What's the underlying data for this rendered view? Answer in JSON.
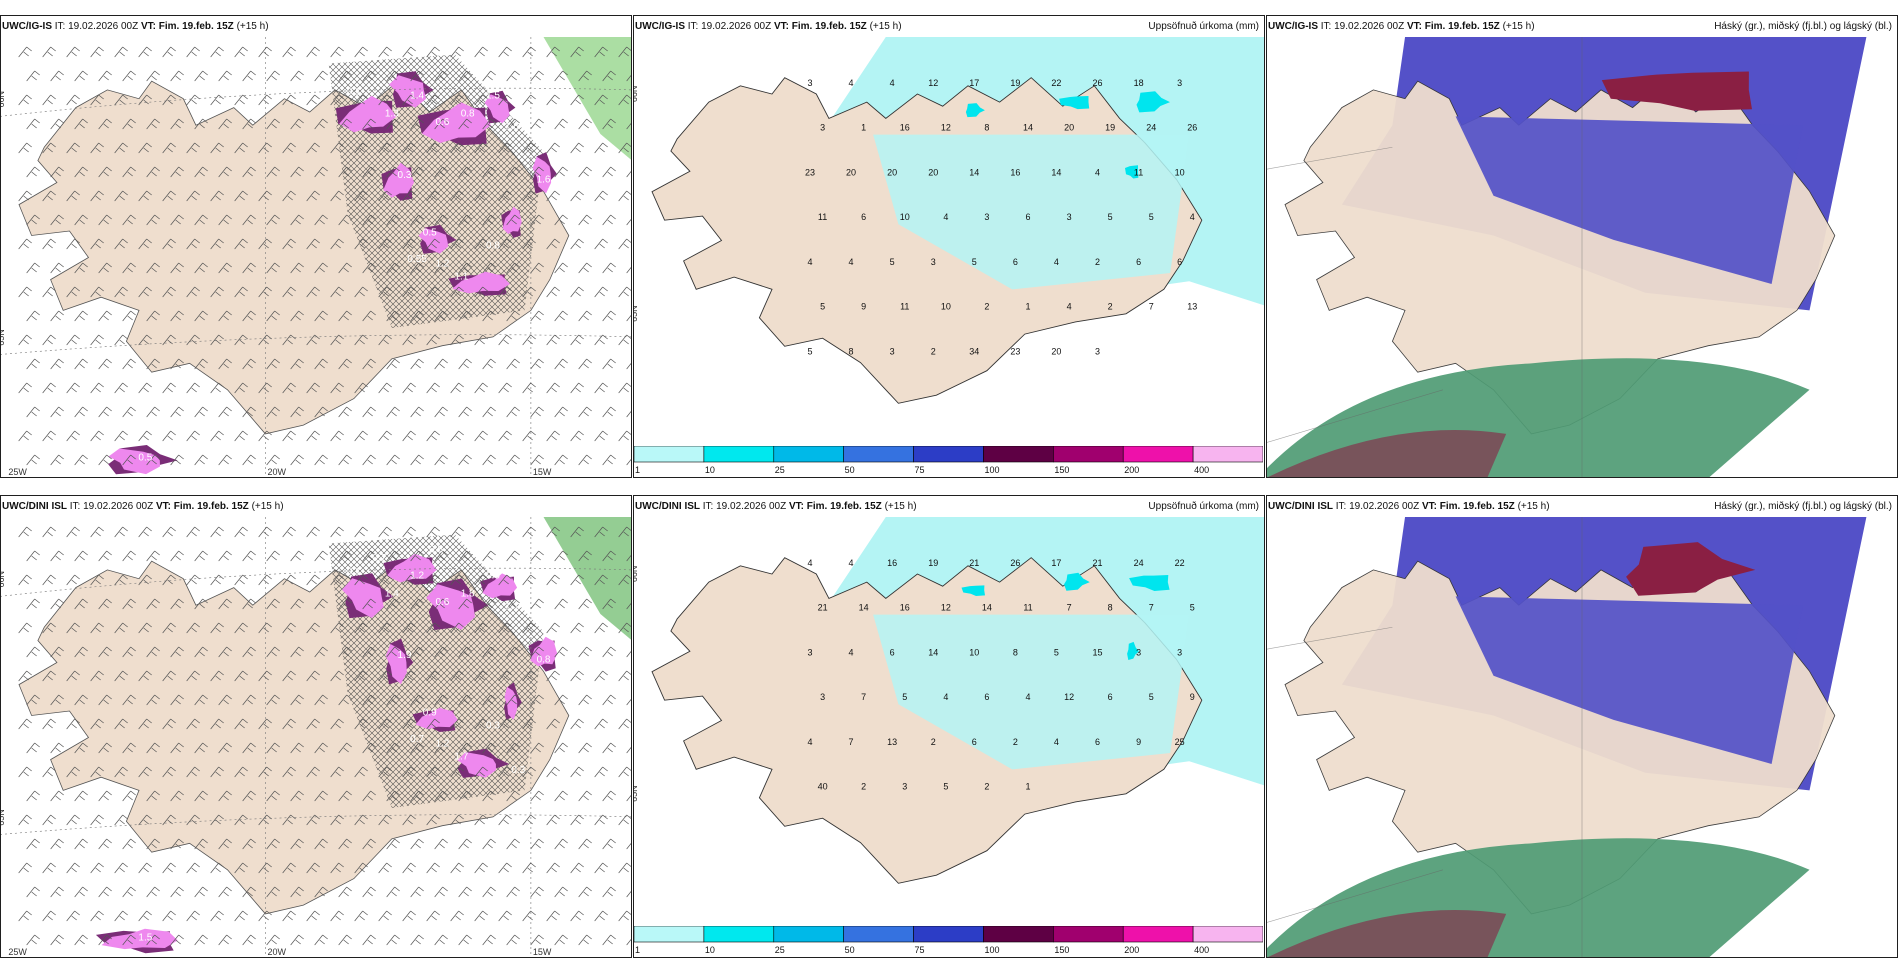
{
  "panels": [
    {
      "row": 0,
      "col": 0,
      "type": "wind",
      "model": "UWC/IG-IS",
      "it_label": "IT:",
      "it": "19.02.2026 00Z",
      "vt_label": "VT:",
      "vt": "Fim. 19.feb. 15Z",
      "lead": "(+15 h)",
      "right_title": "",
      "lat_labels": [
        "66N",
        "65N"
      ],
      "lon_labels": [
        "25W",
        "20W",
        "15W"
      ],
      "precip_labels": [
        "0.1",
        "1.3",
        "1.4",
        "0.6",
        "0.8",
        "1.5",
        "1.6",
        "0.3",
        "0.5",
        "1.1",
        "0.8",
        "0.55",
        "1.2",
        "1.6",
        "0.5"
      ],
      "colors": {
        "land": "#efdece",
        "water": "#ffffff",
        "precip_light": "#ee88ee",
        "precip_dark": "#7a2d77",
        "green": "#88d07c"
      }
    },
    {
      "row": 0,
      "col": 1,
      "type": "precip",
      "model": "UWC/IG-IS",
      "it_label": "IT:",
      "it": "19.02.2026 00Z",
      "vt_label": "VT:",
      "vt": "Fim. 19.feb. 15Z",
      "lead": "(+15 h)",
      "right_title": "Uppsöfnuð úrkoma (mm)",
      "lat_labels": [
        "66N",
        "65N"
      ],
      "values": [
        "3",
        "4",
        "4",
        "12",
        "17",
        "19",
        "22",
        "26",
        "18",
        "3",
        "3",
        "1",
        "16",
        "12",
        "8",
        "14",
        "20",
        "19",
        "24",
        "26",
        "23",
        "20",
        "20",
        "20",
        "14",
        "16",
        "14",
        "4",
        "11",
        "10",
        "11",
        "6",
        "10",
        "4",
        "3",
        "6",
        "3",
        "5",
        "5",
        "4",
        "4",
        "4",
        "5",
        "3",
        "5",
        "6",
        "4",
        "2",
        "6",
        "6",
        "5",
        "9",
        "11",
        "10",
        "2",
        "1",
        "4",
        "2",
        "7",
        "13",
        "5",
        "8",
        "3",
        "2",
        "34",
        "23",
        "20",
        "3"
      ],
      "colors": {
        "land": "#efdece",
        "water": "#ffffff",
        "precip_fill": "#b4f4f4",
        "precip_heavy": "#00e5ee"
      },
      "legend": {
        "ticks": [
          "1",
          "10",
          "25",
          "50",
          "75",
          "100",
          "150",
          "200",
          "400"
        ],
        "colors": [
          "#b9f8f8",
          "#00e8ee",
          "#00b9e8",
          "#3572e0",
          "#2c3dc6",
          "#5e0044",
          "#a0006e",
          "#ee11aa",
          "#f7b4ef"
        ]
      }
    },
    {
      "row": 0,
      "col": 2,
      "type": "cloud",
      "model": "UWC/IG-IS",
      "it_label": "IT:",
      "it": "19.02.2026 00Z",
      "vt_label": "VT:",
      "vt": "Fim. 19.feb. 15Z",
      "lead": "(+15 h)",
      "right_title": "Háský (gr.), miðský (fj.bl.) og lágský (bl.)",
      "colors": {
        "land": "#efdece",
        "low_cloud": "#5451c8",
        "mid_cloud": "#8a1f43",
        "high_cloud": "#4f9b74"
      }
    },
    {
      "row": 1,
      "col": 0,
      "type": "wind",
      "model": "UWC/DINI ISL",
      "it_label": "IT:",
      "it": "19.02.2026 00Z",
      "vt_label": "VT:",
      "vt": "Fim. 19.feb. 15Z",
      "lead": "(+15 h)",
      "right_title": "",
      "lat_labels": [
        "66N",
        "65N"
      ],
      "lon_labels": [
        "25W",
        "20W",
        "15W"
      ],
      "precip_labels": [
        "0.1",
        "1.4",
        "1.2",
        "0.6",
        "1.8",
        "0.5",
        "1.1",
        "1.9",
        "0.9",
        "1.7",
        "0.3",
        "0.7",
        "1.2",
        "0.8",
        "1.5",
        "0.7",
        "0.8",
        "0.3"
      ],
      "colors": {
        "land": "#efdece",
        "water": "#ffffff",
        "precip_light": "#ee88ee",
        "precip_dark": "#7a2d77",
        "green": "#67b865"
      }
    },
    {
      "row": 1,
      "col": 1,
      "type": "precip",
      "model": "UWC/DINI ISL",
      "it_label": "IT:",
      "it": "19.02.2026 00Z",
      "vt_label": "VT:",
      "vt": "Fim. 19.feb. 15Z",
      "lead": "(+15 h)",
      "right_title": "Uppsöfnuð úrkoma (mm)",
      "lat_labels": [
        "66N",
        "65N"
      ],
      "values": [
        "4",
        "4",
        "16",
        "19",
        "21",
        "26",
        "17",
        "21",
        "24",
        "22",
        "21",
        "14",
        "16",
        "12",
        "14",
        "11",
        "7",
        "8",
        "7",
        "5",
        "3",
        "4",
        "6",
        "14",
        "10",
        "8",
        "5",
        "15",
        "3",
        "3",
        "3",
        "7",
        "5",
        "4",
        "6",
        "4",
        "12",
        "6",
        "5",
        "9",
        "4",
        "7",
        "13",
        "2",
        "6",
        "2",
        "4",
        "6",
        "9",
        "25",
        "40",
        "2",
        "3",
        "5",
        "2",
        "1"
      ],
      "colors": {
        "land": "#efdece",
        "water": "#ffffff",
        "precip_fill": "#b4f4f4",
        "precip_heavy": "#00e5ee"
      },
      "legend": {
        "ticks": [
          "1",
          "10",
          "25",
          "50",
          "75",
          "100",
          "150",
          "200",
          "400"
        ],
        "colors": [
          "#b9f8f8",
          "#00e8ee",
          "#00b9e8",
          "#3572e0",
          "#2c3dc6",
          "#5e0044",
          "#a0006e",
          "#ee11aa",
          "#f7b4ef"
        ]
      }
    },
    {
      "row": 1,
      "col": 2,
      "type": "cloud",
      "model": "UWC/DINI ISL",
      "it_label": "IT:",
      "it": "19.02.2026 00Z",
      "vt_label": "VT:",
      "vt": "Fim. 19.feb. 15Z",
      "lead": "(+15 h)",
      "right_title": "Háský (gr.), miðský (fj.bl.) og lágský (bl.)",
      "colors": {
        "land": "#efdece",
        "low_cloud": "#5451c8",
        "mid_cloud": "#8a1f43",
        "high_cloud": "#4f9b74"
      }
    }
  ]
}
